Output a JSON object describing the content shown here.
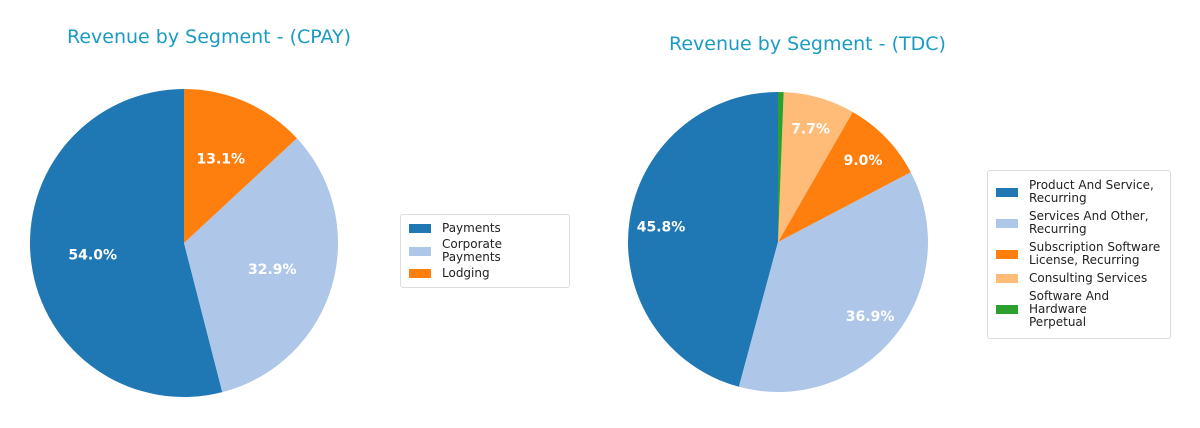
{
  "chart_data": [
    {
      "type": "pie",
      "title": "Revenue by Segment - (CPAY)",
      "categories": [
        "Payments",
        "Corporate Payments",
        "Lodging"
      ],
      "values": [
        54.0,
        32.9,
        13.1
      ],
      "labels": [
        "54.0%",
        "32.9%",
        "13.1%"
      ],
      "colors": [
        "#1f77b4",
        "#aec7e8",
        "#ff7f0e"
      ],
      "start_angle": 90,
      "direction": "counterclockwise",
      "legend_position": "right"
    },
    {
      "type": "pie",
      "title": "Revenue by Segment - (TDC)",
      "categories": [
        "Product And Service, Recurring",
        "Services And Other, Recurring",
        "Subscription Software License, Recurring",
        "Consulting Services",
        "Software And Hardware Perpetual"
      ],
      "legend_lines": [
        [
          "Product And Service,",
          "Recurring"
        ],
        [
          "Services And Other,",
          "Recurring"
        ],
        [
          "Subscription Software",
          "License, Recurring"
        ],
        [
          "Consulting Services"
        ],
        [
          "Software And Hardware",
          "Perpetual"
        ]
      ],
      "values": [
        45.8,
        36.9,
        9.0,
        7.7,
        0.6
      ],
      "labels": [
        "45.8%",
        "36.9%",
        "9.0%",
        "7.7%",
        ""
      ],
      "colors": [
        "#1f77b4",
        "#aec7e8",
        "#ff7f0e",
        "#ffbb78",
        "#2ca02c"
      ],
      "start_angle": 90,
      "direction": "counterclockwise",
      "legend_position": "right"
    }
  ]
}
